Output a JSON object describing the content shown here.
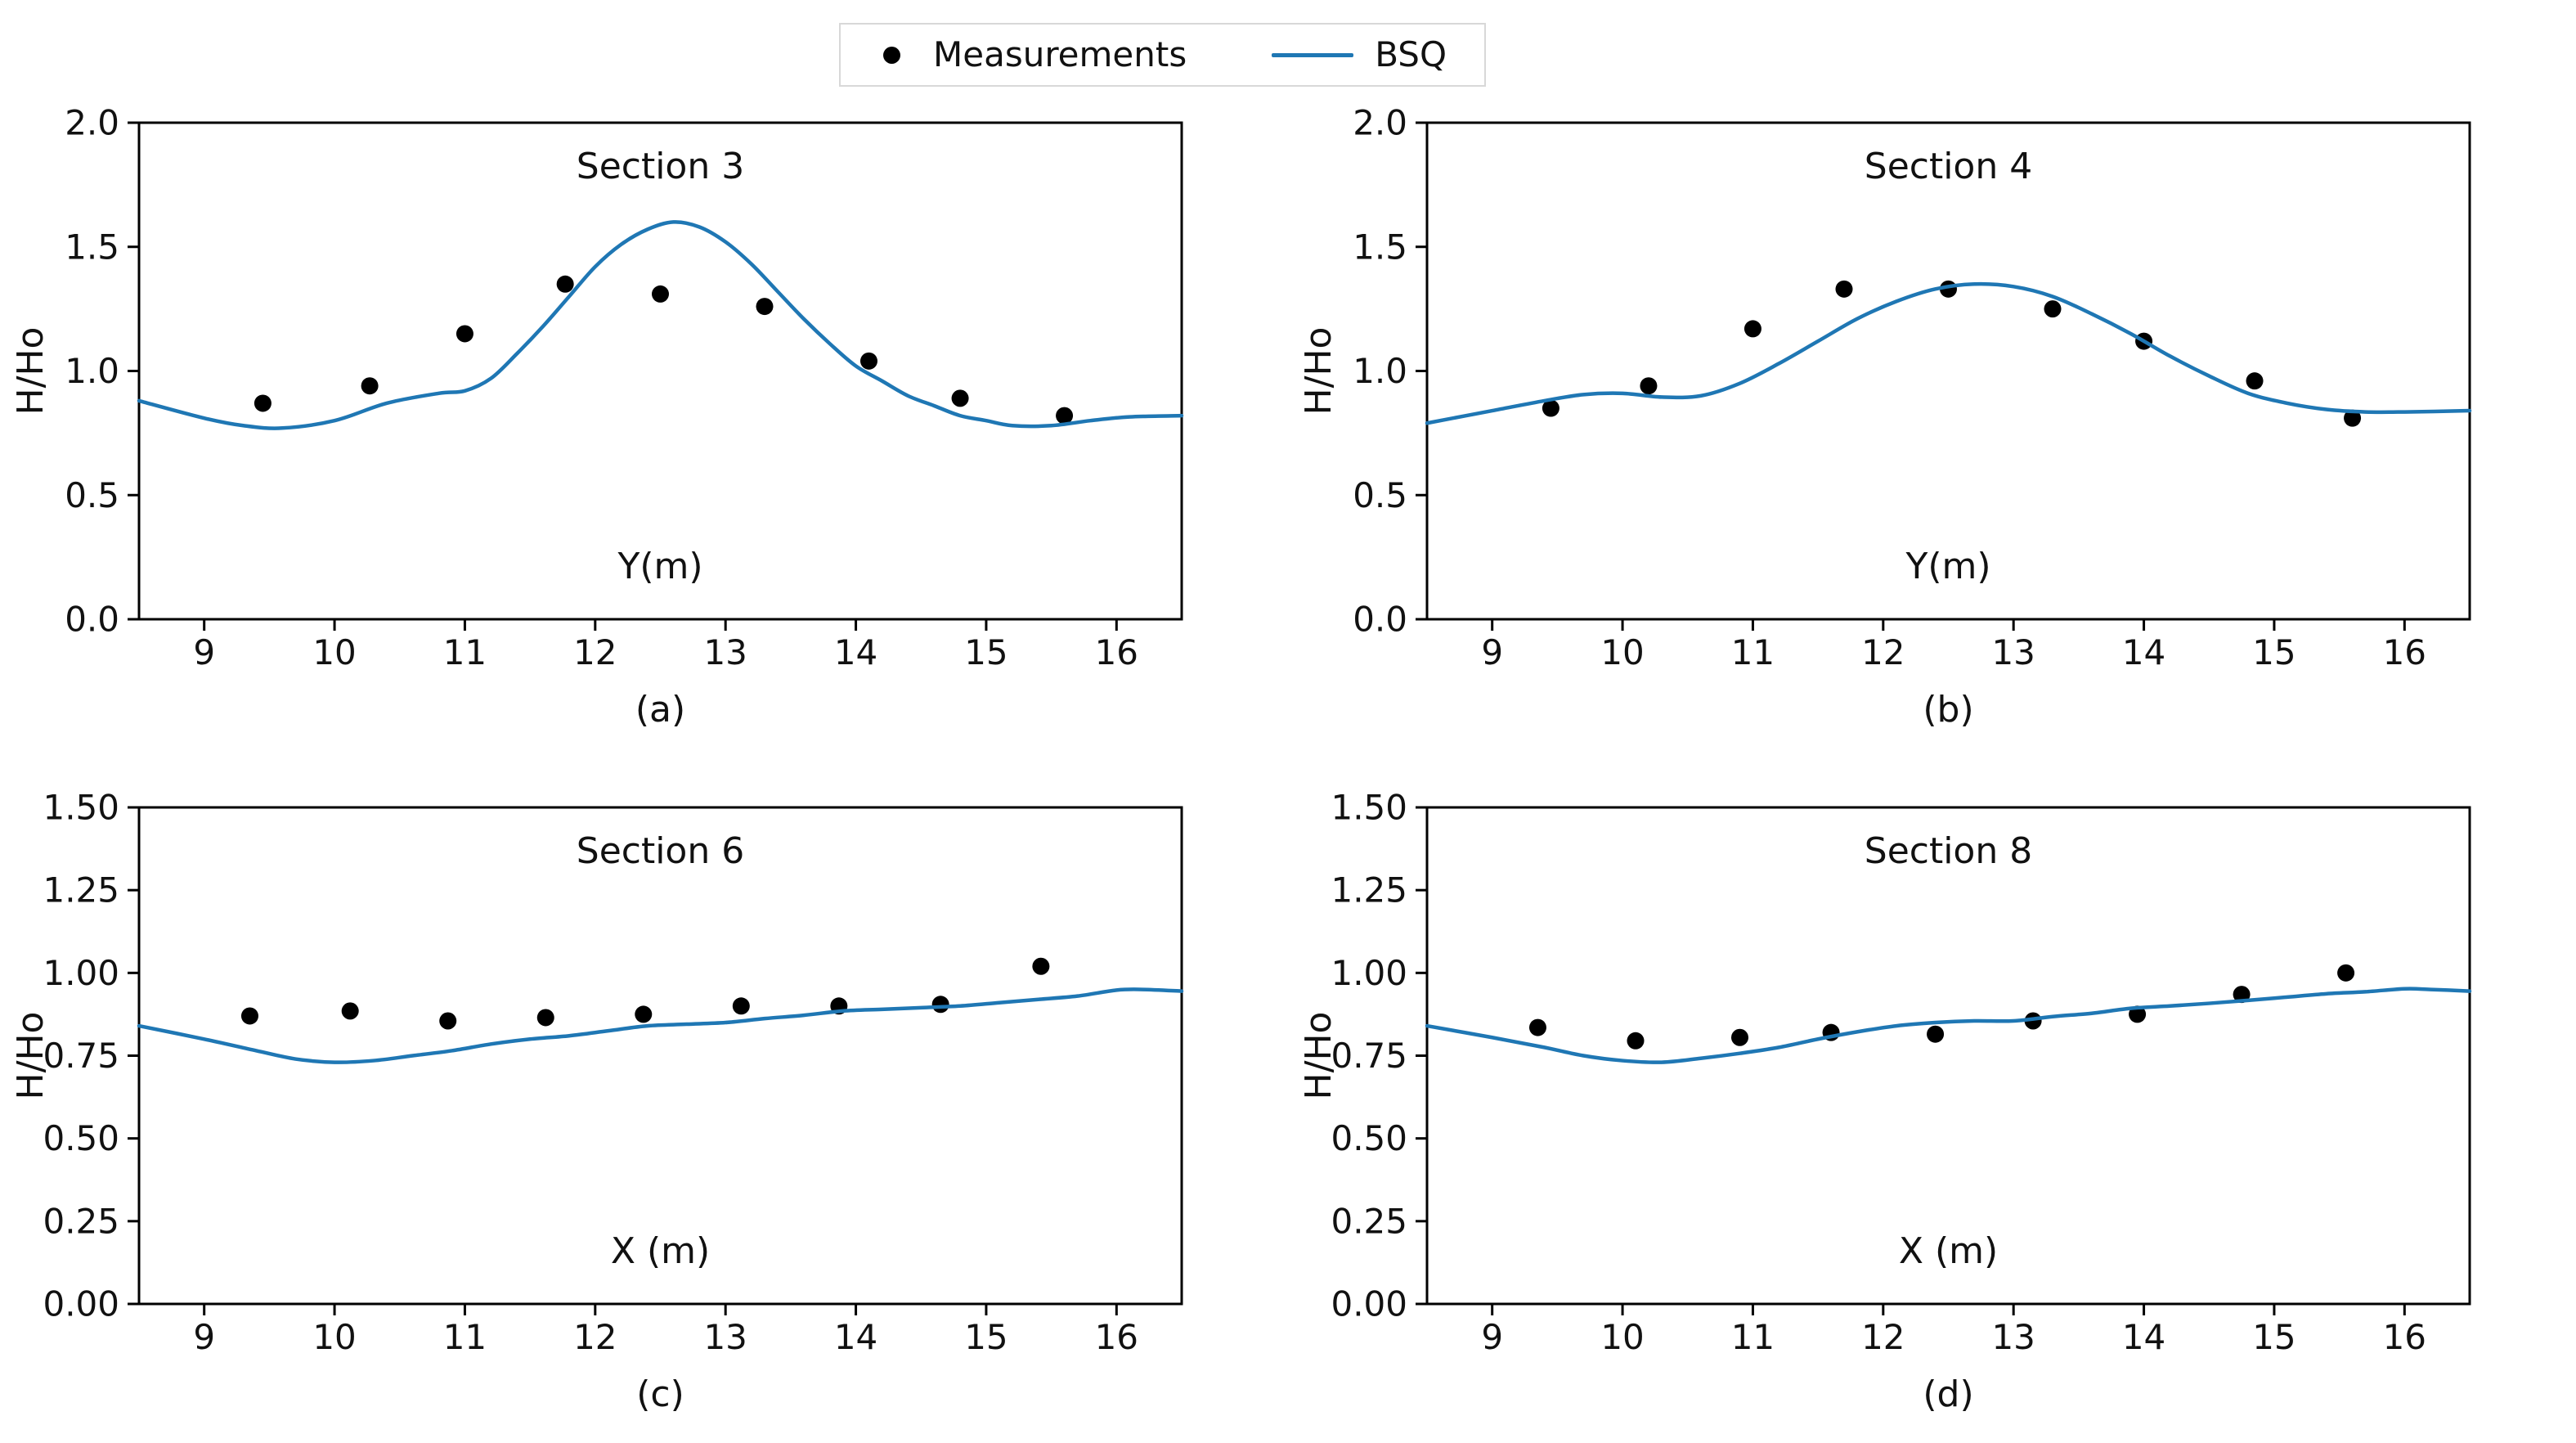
{
  "legend": {
    "items": [
      {
        "label": "Measurements",
        "marker": "dot",
        "color": "#000000"
      },
      {
        "label": "BSQ",
        "marker": "line",
        "color": "#1f77b4"
      }
    ]
  },
  "colors": {
    "bsq_line": "#1f77b4",
    "measurement_marker": "#000000",
    "text": "#111111",
    "spine": "#000000",
    "legend_border": "#d8d8d8"
  },
  "chart_data": [
    {
      "type": "scatter",
      "title": "Section 3",
      "xlabel": "Y(m)",
      "ylabel": "H/Ho",
      "caption": "(a)",
      "xlim": [
        8.5,
        16.5
      ],
      "ylim": [
        0.0,
        2.0
      ],
      "grid": false,
      "xticks": {
        "values": [
          9,
          10,
          11,
          12,
          13,
          14,
          15,
          16
        ],
        "labels": [
          "9",
          "10",
          "11",
          "12",
          "13",
          "14",
          "15",
          "16"
        ]
      },
      "yticks": {
        "values": [
          0.0,
          0.5,
          1.0,
          1.5,
          2.0
        ],
        "labels": [
          "0.0",
          "0.5",
          "1.0",
          "1.5",
          "2.0"
        ]
      },
      "series": [
        {
          "name": "Measurements",
          "type": "scatter",
          "x": [
            9.45,
            10.27,
            11.0,
            11.77,
            12.5,
            13.3,
            14.1,
            14.8,
            15.6
          ],
          "y": [
            0.87,
            0.94,
            1.15,
            1.35,
            1.31,
            1.26,
            1.04,
            0.89,
            0.82
          ]
        },
        {
          "name": "BSQ",
          "type": "line",
          "x": [
            8.5,
            9.0,
            9.3,
            9.6,
            10.0,
            10.4,
            10.8,
            11.0,
            11.2,
            11.4,
            11.6,
            11.8,
            12.0,
            12.2,
            12.4,
            12.6,
            12.8,
            13.0,
            13.2,
            13.4,
            13.6,
            13.8,
            14.0,
            14.2,
            14.4,
            14.6,
            14.8,
            15.0,
            15.2,
            15.5,
            15.8,
            16.1,
            16.5
          ],
          "y": [
            0.88,
            0.81,
            0.78,
            0.77,
            0.8,
            0.87,
            0.91,
            0.92,
            0.97,
            1.07,
            1.18,
            1.3,
            1.42,
            1.51,
            1.57,
            1.6,
            1.58,
            1.52,
            1.43,
            1.32,
            1.21,
            1.11,
            1.02,
            0.96,
            0.9,
            0.86,
            0.82,
            0.8,
            0.78,
            0.78,
            0.8,
            0.815,
            0.82
          ]
        }
      ]
    },
    {
      "type": "scatter",
      "title": "Section 4",
      "xlabel": "Y(m)",
      "ylabel": "H/Ho",
      "caption": "(b)",
      "xlim": [
        8.5,
        16.5
      ],
      "ylim": [
        0.0,
        2.0
      ],
      "grid": false,
      "xticks": {
        "values": [
          9,
          10,
          11,
          12,
          13,
          14,
          15,
          16
        ],
        "labels": [
          "9",
          "10",
          "11",
          "12",
          "13",
          "14",
          "15",
          "16"
        ]
      },
      "yticks": {
        "values": [
          0.0,
          0.5,
          1.0,
          1.5,
          2.0
        ],
        "labels": [
          "0.0",
          "0.5",
          "1.0",
          "1.5",
          "2.0"
        ]
      },
      "series": [
        {
          "name": "Measurements",
          "type": "scatter",
          "x": [
            9.45,
            10.2,
            11.0,
            11.7,
            12.5,
            13.3,
            14.0,
            14.85,
            15.6
          ],
          "y": [
            0.85,
            0.94,
            1.17,
            1.33,
            1.33,
            1.25,
            1.12,
            0.96,
            0.81
          ]
        },
        {
          "name": "BSQ",
          "type": "line",
          "x": [
            8.5,
            9.0,
            9.4,
            9.7,
            10.0,
            10.3,
            10.6,
            10.9,
            11.2,
            11.5,
            11.8,
            12.1,
            12.4,
            12.7,
            13.0,
            13.3,
            13.6,
            13.9,
            14.2,
            14.5,
            14.8,
            15.1,
            15.4,
            15.7,
            16.0,
            16.5
          ],
          "y": [
            0.79,
            0.84,
            0.88,
            0.905,
            0.91,
            0.895,
            0.9,
            0.95,
            1.03,
            1.12,
            1.21,
            1.28,
            1.33,
            1.35,
            1.34,
            1.3,
            1.23,
            1.15,
            1.06,
            0.98,
            0.91,
            0.87,
            0.845,
            0.835,
            0.835,
            0.84
          ]
        }
      ]
    },
    {
      "type": "scatter",
      "title": "Section 6",
      "xlabel": "X (m)",
      "ylabel": "H/Ho",
      "caption": "(c)",
      "xlim": [
        8.5,
        16.5
      ],
      "ylim": [
        0.0,
        1.5
      ],
      "grid": false,
      "xticks": {
        "values": [
          9,
          10,
          11,
          12,
          13,
          14,
          15,
          16
        ],
        "labels": [
          "9",
          "10",
          "11",
          "12",
          "13",
          "14",
          "15",
          "16"
        ]
      },
      "yticks": {
        "values": [
          0.0,
          0.25,
          0.5,
          0.75,
          1.0,
          1.25,
          1.5
        ],
        "labels": [
          "0.00",
          "0.25",
          "0.50",
          "0.75",
          "1.00",
          "1.25",
          "1.50"
        ]
      },
      "series": [
        {
          "name": "Measurements",
          "type": "scatter",
          "x": [
            9.35,
            10.12,
            10.87,
            11.62,
            12.37,
            13.12,
            13.87,
            14.65,
            15.42
          ],
          "y": [
            0.87,
            0.885,
            0.855,
            0.865,
            0.875,
            0.9,
            0.9,
            0.905,
            1.02
          ]
        },
        {
          "name": "BSQ",
          "type": "line",
          "x": [
            8.5,
            9.0,
            9.4,
            9.7,
            10.0,
            10.3,
            10.6,
            10.9,
            11.2,
            11.5,
            11.8,
            12.1,
            12.4,
            12.7,
            13.0,
            13.3,
            13.6,
            13.9,
            14.2,
            14.5,
            14.8,
            15.1,
            15.4,
            15.7,
            16.0,
            16.2,
            16.5
          ],
          "y": [
            0.84,
            0.8,
            0.765,
            0.74,
            0.73,
            0.735,
            0.75,
            0.765,
            0.785,
            0.8,
            0.81,
            0.825,
            0.84,
            0.845,
            0.85,
            0.862,
            0.872,
            0.885,
            0.89,
            0.895,
            0.9,
            0.91,
            0.92,
            0.93,
            0.948,
            0.95,
            0.945
          ]
        }
      ]
    },
    {
      "type": "scatter",
      "title": "Section 8",
      "xlabel": "X (m)",
      "ylabel": "H/Ho",
      "caption": "(d)",
      "xlim": [
        8.5,
        16.5
      ],
      "ylim": [
        0.0,
        1.5
      ],
      "grid": false,
      "xticks": {
        "values": [
          9,
          10,
          11,
          12,
          13,
          14,
          15,
          16
        ],
        "labels": [
          "9",
          "10",
          "11",
          "12",
          "13",
          "14",
          "15",
          "16"
        ]
      },
      "yticks": {
        "values": [
          0.0,
          0.25,
          0.5,
          0.75,
          1.0,
          1.25,
          1.5
        ],
        "labels": [
          "0.00",
          "0.25",
          "0.50",
          "0.75",
          "1.00",
          "1.25",
          "1.50"
        ]
      },
      "series": [
        {
          "name": "Measurements",
          "type": "scatter",
          "x": [
            9.35,
            10.1,
            10.9,
            11.6,
            12.4,
            13.15,
            13.95,
            14.75,
            15.55
          ],
          "y": [
            0.835,
            0.795,
            0.805,
            0.82,
            0.815,
            0.855,
            0.875,
            0.935,
            1.0
          ]
        },
        {
          "name": "BSQ",
          "type": "line",
          "x": [
            8.5,
            9.0,
            9.4,
            9.7,
            10.0,
            10.3,
            10.6,
            10.9,
            11.2,
            11.5,
            11.8,
            12.1,
            12.4,
            12.7,
            13.0,
            13.3,
            13.6,
            13.9,
            14.2,
            14.5,
            14.8,
            15.1,
            15.4,
            15.7,
            16.0,
            16.2,
            16.5
          ],
          "y": [
            0.84,
            0.805,
            0.775,
            0.75,
            0.735,
            0.73,
            0.742,
            0.757,
            0.775,
            0.8,
            0.822,
            0.84,
            0.85,
            0.855,
            0.855,
            0.868,
            0.878,
            0.893,
            0.9,
            0.908,
            0.917,
            0.927,
            0.937,
            0.943,
            0.952,
            0.95,
            0.945
          ]
        }
      ]
    }
  ]
}
